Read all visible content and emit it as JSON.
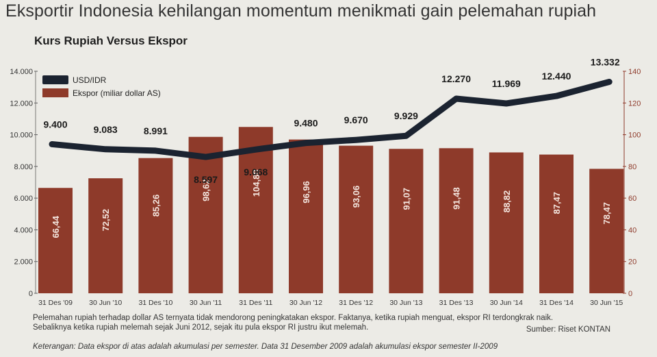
{
  "headline": "Eksportir Indonesia kehilangan momentum menikmati gain pelemahan rupiah",
  "chart_data": {
    "type": "bar",
    "title": "Kurs Rupiah Versus Ekspor",
    "categories": [
      "31 Des '09",
      "30 Jun '10",
      "31 Des '10",
      "30 Jun '11",
      "31 Des '11",
      "30 Jun '12",
      "31 Des '12",
      "30 Jun '13",
      "31 Des '13",
      "30 Jun '14",
      "31 Des '14",
      "30 Jun '15"
    ],
    "series": [
      {
        "name": "USD/IDR",
        "type": "line",
        "axis": "left",
        "values": [
          9400,
          9083,
          8991,
          8597,
          9068,
          9480,
          9670,
          9929,
          12270,
          11969,
          12440,
          13332
        ],
        "labels": [
          "9.400",
          "9.083",
          "8.991",
          "8.597",
          "9.068",
          "9.480",
          "9.670",
          "9.929",
          "12.270",
          "11.969",
          "12.440",
          "13.332"
        ],
        "color": "#1b2330"
      },
      {
        "name": "Ekspor (miliar dollar AS)",
        "type": "bar",
        "axis": "right",
        "values": [
          66.44,
          72.52,
          85.26,
          98.62,
          104.88,
          96.96,
          93.06,
          91.07,
          91.48,
          88.82,
          87.47,
          78.47
        ],
        "labels": [
          "66,44",
          "72,52",
          "85,26",
          "98,62",
          "104,88",
          "96,96",
          "93,06",
          "91,07",
          "91,48",
          "88,82",
          "87,47",
          "78,47"
        ],
        "color": "#8e3a2a"
      }
    ],
    "y_left": {
      "min": 0,
      "max": 14000,
      "ticks": [
        0,
        2000,
        4000,
        6000,
        8000,
        10000,
        12000,
        14000
      ],
      "tick_labels": [
        "0",
        "2.000",
        "4.000",
        "6.000",
        "8.000",
        "10.000",
        "12.000",
        "14.000"
      ]
    },
    "y_right": {
      "min": 0,
      "max": 140,
      "ticks": [
        0,
        20,
        40,
        60,
        80,
        100,
        120,
        140
      ],
      "tick_labels": [
        "0",
        "20",
        "40",
        "60",
        "80",
        "100",
        "120",
        "140"
      ]
    },
    "legend_position": "top-left",
    "grid": false
  },
  "note_line1": "Pelemahan rupiah terhadap dollar AS ternyata tidak mendorong peningkatakan ekspor. Faktanya, ketika rupiah menguat, ekspor RI terdongkrak naik.",
  "note_line2": "Sebaliknya ketika rupiah melemah sejak Juni 2012, sejak itu pula ekspor RI justru ikut melemah.",
  "source": "Sumber: Riset KONTAN",
  "keterangan": "Keterangan: Data ekspor di atas adalah akumulasi per semester. Data 31 Desember 2009 adalah akumulasi ekspor semester II-2009",
  "colors": {
    "bar": "#8e3a2a",
    "line": "#1b2330",
    "background": "#ecebe6"
  }
}
